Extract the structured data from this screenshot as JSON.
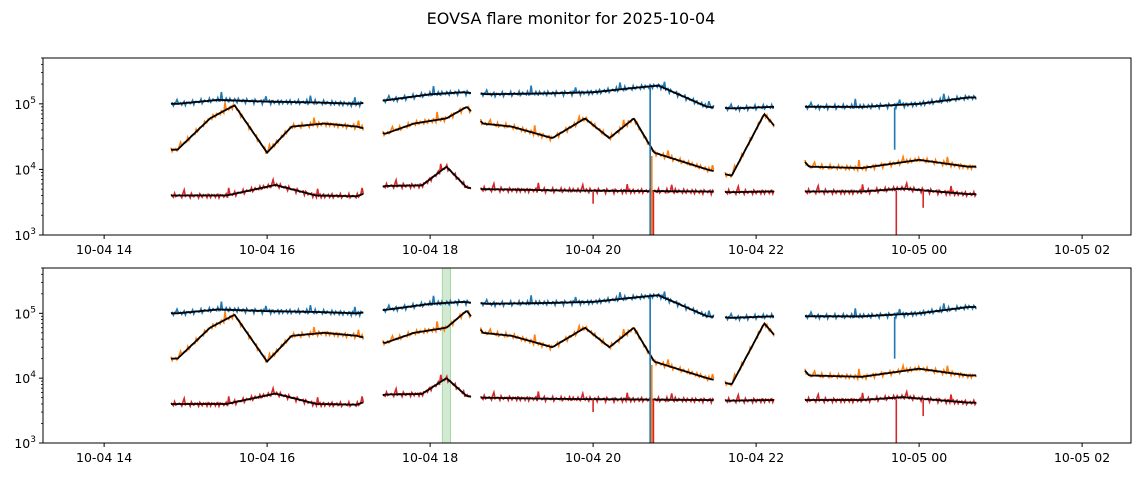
{
  "chart_data": [
    {
      "type": "line",
      "title": "EOVSA flare monitor for 2025-10-04",
      "xlabel": "",
      "ylabel": "",
      "y_scale": "log",
      "ylim": [
        1000,
        500000
      ],
      "xlim_hours": [
        13.25,
        26.6
      ],
      "x_ticks": [
        "10-04 14",
        "10-04 16",
        "10-04 18",
        "10-04 20",
        "10-04 22",
        "10-05 00",
        "10-05 02"
      ],
      "x_tick_hours": [
        14,
        16,
        18,
        20,
        22,
        24,
        26
      ],
      "y_ticks": [
        {
          "value": 1000,
          "base": "10",
          "exp": "3"
        },
        {
          "value": 10000,
          "base": "10",
          "exp": "4"
        },
        {
          "value": 100000,
          "base": "10",
          "exp": "5"
        }
      ],
      "segments_hours": [
        [
          14.82,
          17.18
        ],
        [
          17.42,
          18.5
        ],
        [
          18.62,
          21.48
        ],
        [
          21.62,
          22.22
        ],
        [
          22.6,
          24.7
        ]
      ],
      "series": [
        {
          "color": "#1f77b4",
          "smooth_color": "#000000",
          "points": [
            [
              14.9,
              100000
            ],
            [
              15.4,
              115000
            ],
            [
              16.0,
              108000
            ],
            [
              16.6,
              105000
            ],
            [
              17.1,
              100000
            ],
            [
              17.5,
              115000
            ],
            [
              18.0,
              140000
            ],
            [
              18.4,
              150000
            ],
            [
              18.7,
              140000
            ],
            [
              19.5,
              145000
            ],
            [
              20.0,
              150000
            ],
            [
              20.4,
              170000
            ],
            [
              20.8,
              190000
            ],
            [
              21.4,
              90000
            ],
            [
              21.7,
              85000
            ],
            [
              22.2,
              90000
            ],
            [
              22.65,
              90000
            ],
            [
              23.3,
              90000
            ],
            [
              24.0,
              100000
            ],
            [
              24.6,
              125000
            ]
          ]
        },
        {
          "color": "#ff7f0e",
          "smooth_color": "#000000",
          "points": [
            [
              14.9,
              20000
            ],
            [
              15.3,
              60000
            ],
            [
              15.6,
              95000
            ],
            [
              16.0,
              18000
            ],
            [
              16.3,
              45000
            ],
            [
              16.7,
              50000
            ],
            [
              17.1,
              45000
            ],
            [
              17.45,
              35000
            ],
            [
              17.8,
              50000
            ],
            [
              18.2,
              60000
            ],
            [
              18.45,
              90000
            ],
            [
              18.65,
              50000
            ],
            [
              19.0,
              45000
            ],
            [
              19.5,
              30000
            ],
            [
              19.9,
              60000
            ],
            [
              20.2,
              30000
            ],
            [
              20.5,
              60000
            ],
            [
              20.75,
              18000
            ],
            [
              21.4,
              10000
            ],
            [
              21.7,
              8000
            ],
            [
              22.1,
              70000
            ],
            [
              22.65,
              11000
            ],
            [
              23.3,
              10500
            ],
            [
              24.0,
              14000
            ],
            [
              24.6,
              11000
            ]
          ]
        },
        {
          "color": "#d62728",
          "smooth_color": "#000000",
          "points": [
            [
              14.9,
              4000
            ],
            [
              15.5,
              4000
            ],
            [
              16.1,
              5800
            ],
            [
              16.6,
              4000
            ],
            [
              17.1,
              3900
            ],
            [
              17.45,
              5600
            ],
            [
              17.9,
              5700
            ],
            [
              18.2,
              11000
            ],
            [
              18.45,
              5300
            ],
            [
              18.65,
              5000
            ],
            [
              19.5,
              4800
            ],
            [
              20.4,
              4700
            ],
            [
              21.4,
              4600
            ],
            [
              21.7,
              4500
            ],
            [
              22.2,
              4600
            ],
            [
              22.65,
              4600
            ],
            [
              23.3,
              4600
            ],
            [
              23.8,
              5100
            ],
            [
              24.6,
              4200
            ]
          ]
        }
      ]
    },
    {
      "type": "line",
      "title": "",
      "xlabel": "",
      "ylabel": "",
      "y_scale": "log",
      "ylim": [
        1000,
        500000
      ],
      "xlim_hours": [
        13.25,
        26.6
      ],
      "x_ticks": [
        "10-04 14",
        "10-04 16",
        "10-04 18",
        "10-04 20",
        "10-04 22",
        "10-05 00",
        "10-05 02"
      ],
      "x_tick_hours": [
        14,
        16,
        18,
        20,
        22,
        24,
        26
      ],
      "y_ticks": [
        {
          "value": 1000,
          "base": "10",
          "exp": "3"
        },
        {
          "value": 10000,
          "base": "10",
          "exp": "4"
        },
        {
          "value": 100000,
          "base": "10",
          "exp": "5"
        }
      ],
      "highlight_span_hours": [
        18.15,
        18.25
      ],
      "highlight_color": "#2ca02c",
      "segments_hours": [
        [
          14.82,
          17.18
        ],
        [
          17.42,
          18.5
        ],
        [
          18.62,
          21.48
        ],
        [
          21.62,
          22.22
        ],
        [
          22.6,
          24.7
        ]
      ],
      "series": [
        {
          "color": "#1f77b4",
          "smooth_color": "#000000",
          "points": [
            [
              14.9,
              100000
            ],
            [
              15.4,
              115000
            ],
            [
              16.0,
              108000
            ],
            [
              16.6,
              105000
            ],
            [
              17.1,
              100000
            ],
            [
              17.5,
              115000
            ],
            [
              18.0,
              140000
            ],
            [
              18.4,
              150000
            ],
            [
              18.7,
              140000
            ],
            [
              19.5,
              145000
            ],
            [
              20.0,
              150000
            ],
            [
              20.4,
              170000
            ],
            [
              20.8,
              190000
            ],
            [
              21.4,
              90000
            ],
            [
              21.7,
              85000
            ],
            [
              22.2,
              90000
            ],
            [
              22.65,
              90000
            ],
            [
              23.3,
              90000
            ],
            [
              24.0,
              100000
            ],
            [
              24.6,
              125000
            ]
          ]
        },
        {
          "color": "#ff7f0e",
          "smooth_color": "#000000",
          "points": [
            [
              14.9,
              20000
            ],
            [
              15.3,
              60000
            ],
            [
              15.6,
              95000
            ],
            [
              16.0,
              18000
            ],
            [
              16.3,
              45000
            ],
            [
              16.7,
              50000
            ],
            [
              17.1,
              45000
            ],
            [
              17.45,
              35000
            ],
            [
              17.8,
              50000
            ],
            [
              18.2,
              60000
            ],
            [
              18.45,
              110000
            ],
            [
              18.65,
              50000
            ],
            [
              19.0,
              45000
            ],
            [
              19.5,
              30000
            ],
            [
              19.9,
              60000
            ],
            [
              20.2,
              30000
            ],
            [
              20.5,
              60000
            ],
            [
              20.75,
              18000
            ],
            [
              21.4,
              10000
            ],
            [
              21.7,
              8000
            ],
            [
              22.1,
              70000
            ],
            [
              22.65,
              11000
            ],
            [
              23.3,
              10500
            ],
            [
              24.0,
              14000
            ],
            [
              24.6,
              11000
            ]
          ]
        },
        {
          "color": "#d62728",
          "smooth_color": "#000000",
          "points": [
            [
              14.9,
              4000
            ],
            [
              15.5,
              4000
            ],
            [
              16.1,
              5800
            ],
            [
              16.6,
              4000
            ],
            [
              17.1,
              3900
            ],
            [
              17.45,
              5600
            ],
            [
              17.9,
              5700
            ],
            [
              18.2,
              10000
            ],
            [
              18.45,
              5300
            ],
            [
              18.65,
              5000
            ],
            [
              19.5,
              4800
            ],
            [
              20.4,
              4700
            ],
            [
              21.4,
              4600
            ],
            [
              21.7,
              4500
            ],
            [
              22.2,
              4600
            ],
            [
              22.65,
              4600
            ],
            [
              23.3,
              4600
            ],
            [
              23.8,
              5100
            ],
            [
              24.6,
              4200
            ]
          ]
        }
      ]
    }
  ]
}
